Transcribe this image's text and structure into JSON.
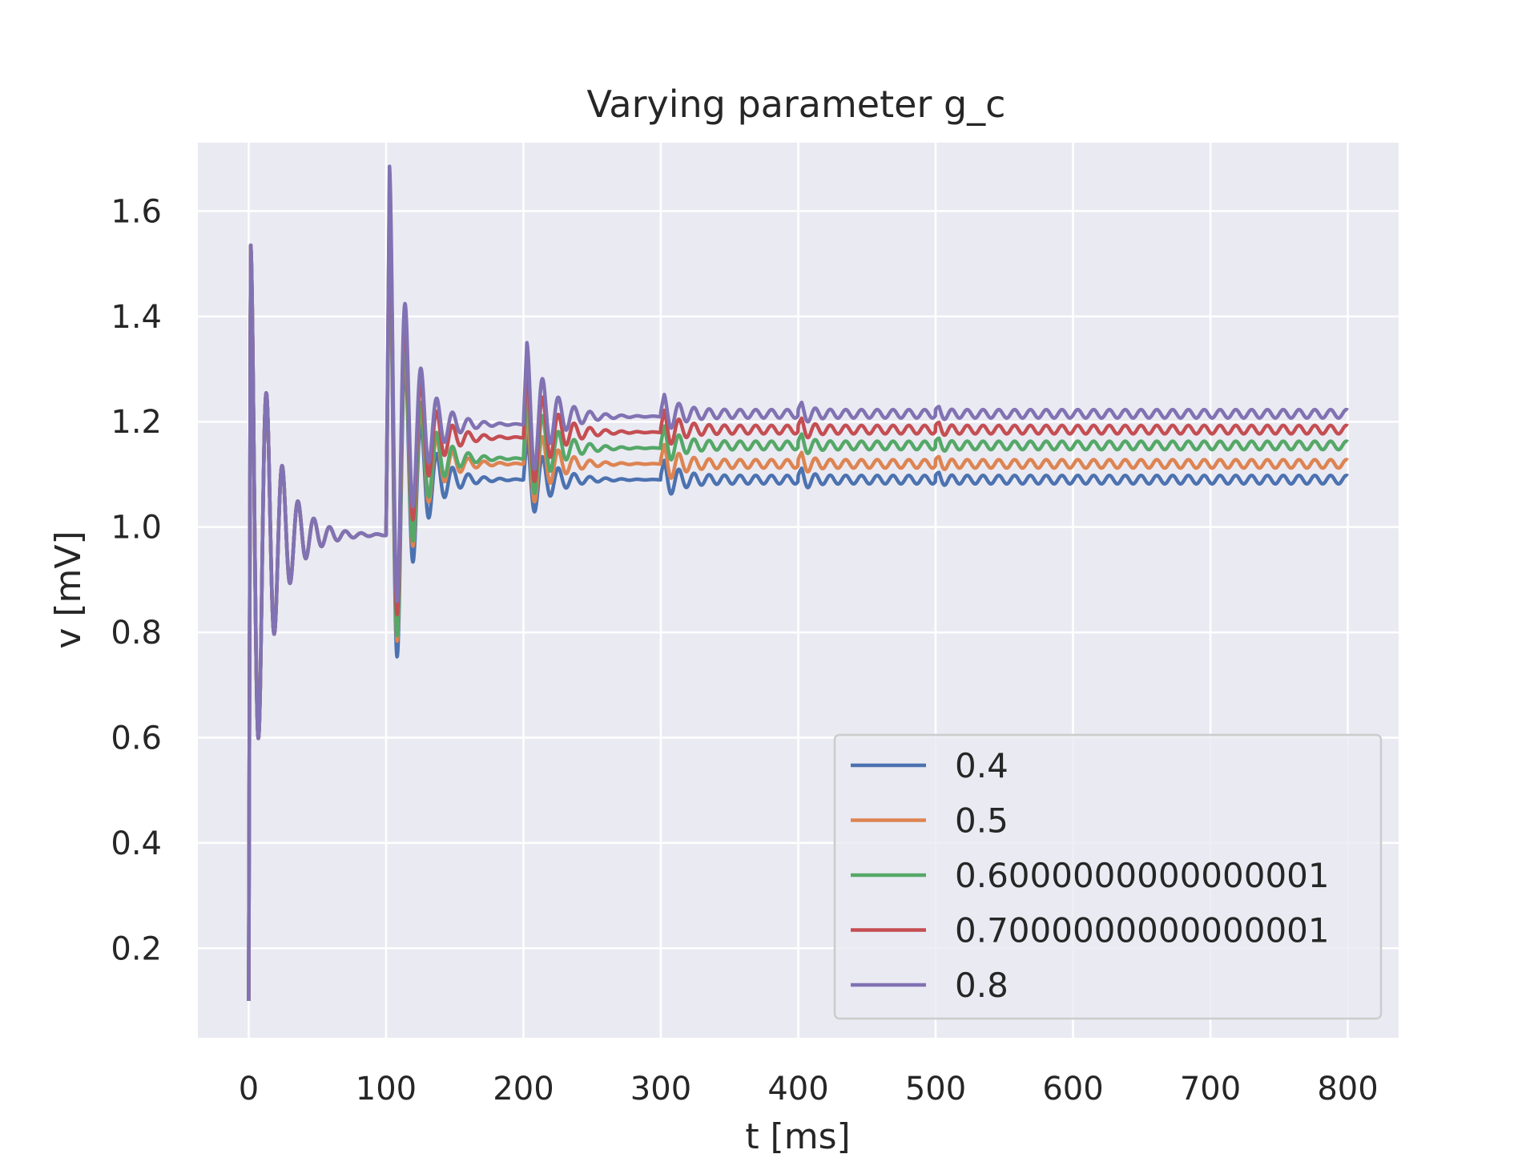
{
  "chart_data": {
    "type": "line",
    "title": "Varying parameter g_c",
    "xlabel": "t [ms]",
    "ylabel": "v [mV]",
    "xlim": [
      -37,
      837
    ],
    "ylim": [
      0.03,
      1.73
    ],
    "xticks": [
      0,
      100,
      200,
      300,
      400,
      500,
      600,
      700,
      800
    ],
    "yticks": [
      0.2,
      0.4,
      0.6,
      0.8,
      1.0,
      1.2,
      1.4,
      1.6
    ],
    "ytick_labels": [
      "0.2",
      "0.4",
      "0.6",
      "0.8",
      "1.0",
      "1.2",
      "1.4",
      "1.6"
    ],
    "grid": true,
    "background": "#eaeaf2",
    "legend_position": "lower-right",
    "model": {
      "t_max": 800,
      "v0": 0.1,
      "oscillation_period_ms": 11.5,
      "stimulus_times": [
        0,
        100,
        200,
        300,
        400,
        500
      ],
      "stimulus_decay_ms": [
        16,
        15,
        17,
        14,
        8,
        5
      ],
      "late_ripple_amplitude": 0.008
    },
    "series": [
      {
        "name": "0.4",
        "color": "#4c72b0",
        "stage_levels": [
          0.985,
          1.09,
          1.09,
          1.09,
          1.09,
          1.09
        ],
        "peak_amplitudes": [
          0.55,
          0.49,
          0.085,
          0.035,
          0.02,
          0.012
        ],
        "fast_rise_peak": 1.65
      },
      {
        "name": "0.5",
        "color": "#dd8452",
        "stage_levels": [
          0.985,
          1.12,
          1.12,
          1.12,
          1.12,
          1.12
        ],
        "peak_amplitudes": [
          0.55,
          0.49,
          0.1,
          0.035,
          0.02,
          0.012
        ],
        "fast_rise_peak": 1.65
      },
      {
        "name": "0.6000000000000001",
        "color": "#55a868",
        "stage_levels": [
          0.985,
          1.13,
          1.15,
          1.155,
          1.155,
          1.155
        ],
        "peak_amplitudes": [
          0.55,
          0.49,
          0.12,
          0.035,
          0.02,
          0.012
        ],
        "fast_rise_peak": 1.65
      },
      {
        "name": "0.7000000000000001",
        "color": "#c44e52",
        "stage_levels": [
          0.985,
          1.17,
          1.18,
          1.185,
          1.185,
          1.185
        ],
        "peak_amplitudes": [
          0.55,
          0.49,
          0.13,
          0.035,
          0.02,
          0.012
        ],
        "fast_rise_peak": 1.65
      },
      {
        "name": "0.8",
        "color": "#8172b3",
        "stage_levels": [
          0.985,
          1.195,
          1.21,
          1.215,
          1.215,
          1.215
        ],
        "peak_amplitudes": [
          0.55,
          0.49,
          0.14,
          0.035,
          0.02,
          0.012
        ],
        "fast_rise_peak": 1.65
      }
    ]
  }
}
